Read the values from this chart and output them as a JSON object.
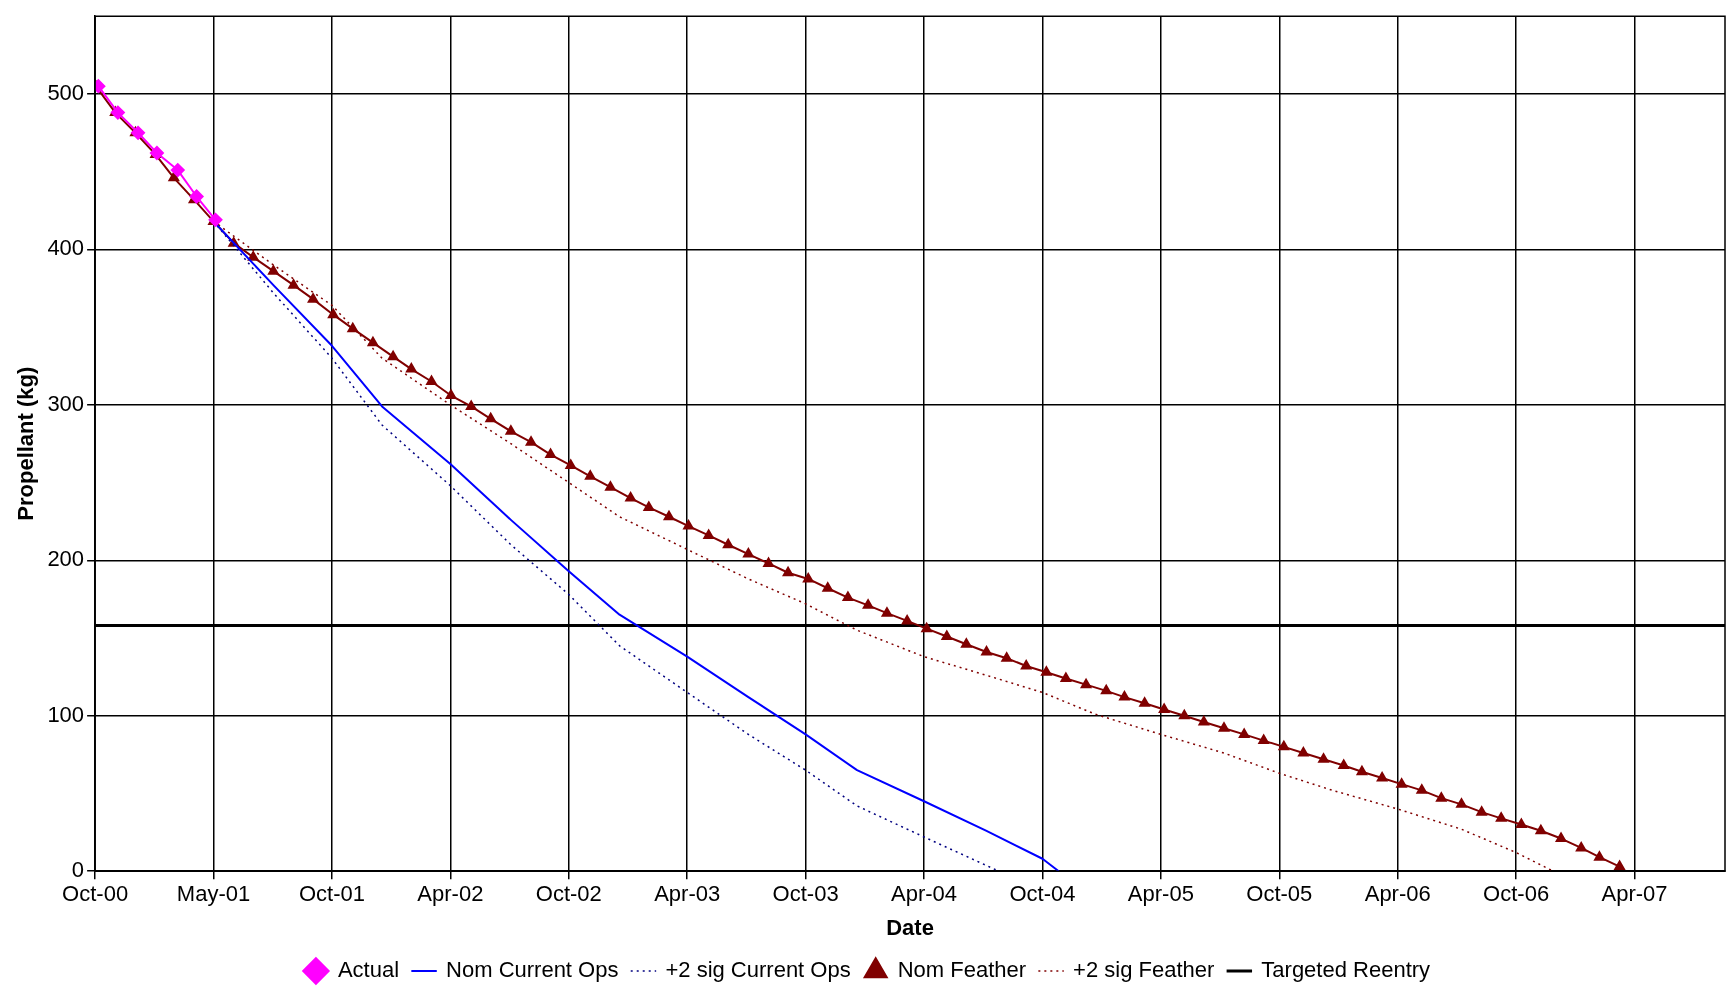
{
  "chart_data": {
    "type": "line",
    "xlabel": "Date",
    "ylabel": "Propellant (kg)",
    "xlim": [
      "2000-10-31",
      "2007-09-10"
    ],
    "xticks": [
      {
        "value": "2000-10-31",
        "label": "Oct-00"
      },
      {
        "value": "2001-05-01",
        "label": "May-01"
      },
      {
        "value": "2001-10-30",
        "label": "Oct-01"
      },
      {
        "value": "2002-04-30",
        "label": "Apr-02"
      },
      {
        "value": "2002-10-29",
        "label": "Oct-02"
      },
      {
        "value": "2003-04-29",
        "label": "Apr-03"
      },
      {
        "value": "2003-10-28",
        "label": "Oct-03"
      },
      {
        "value": "2004-04-27",
        "label": "Apr-04"
      },
      {
        "value": "2004-10-26",
        "label": "Oct-04"
      },
      {
        "value": "2005-04-26",
        "label": "Apr-05"
      },
      {
        "value": "2005-10-25",
        "label": "Oct-05"
      },
      {
        "value": "2006-04-25",
        "label": "Apr-06"
      },
      {
        "value": "2006-10-24",
        "label": "Oct-06"
      },
      {
        "value": "2007-04-24",
        "label": "Apr-07"
      }
    ],
    "ylim": [
      0,
      550
    ],
    "yticks": [
      0,
      100,
      200,
      300,
      400,
      500
    ],
    "grid": true,
    "legend": "bottom",
    "series": [
      {
        "name": "Actual",
        "color": "#ff00ff",
        "marker": "diamond",
        "line_style": "solid",
        "x": [
          "2000-11-05",
          "2000-12-05",
          "2001-01-05",
          "2001-02-03",
          "2001-03-07",
          "2001-04-05",
          "2001-05-04"
        ],
        "values": [
          505,
          488,
          475,
          462,
          451,
          434,
          419
        ]
      },
      {
        "name": "Nom Current Ops",
        "color": "#0000ff",
        "marker": "none",
        "line_style": "solid",
        "x": [
          "2001-05-01",
          "2001-08-01",
          "2001-10-30",
          "2002-01-15",
          "2002-04-30",
          "2002-08-01",
          "2002-10-29",
          "2003-01-15",
          "2003-04-29",
          "2003-08-01",
          "2003-10-28",
          "2004-01-15",
          "2004-04-27",
          "2004-08-01",
          "2004-10-26",
          "2004-11-20"
        ],
        "values": [
          418,
          377,
          338,
          299,
          262,
          226,
          193,
          165,
          138,
          112,
          88,
          65,
          45,
          26,
          8,
          0
        ]
      },
      {
        "name": "+2 sig Current Ops",
        "color": "#000080",
        "marker": "none",
        "line_style": "dotted",
        "x": [
          "2001-05-01",
          "2001-08-01",
          "2001-10-30",
          "2002-01-15",
          "2002-04-30",
          "2002-08-01",
          "2002-10-29",
          "2003-01-15",
          "2003-04-29",
          "2003-08-01",
          "2003-10-28",
          "2004-01-15",
          "2004-04-27",
          "2004-08-20"
        ],
        "values": [
          418,
          372,
          330,
          287,
          248,
          210,
          178,
          145,
          115,
          88,
          65,
          42,
          22,
          0
        ]
      },
      {
        "name": "Nom Feather",
        "color": "#800000",
        "marker": "triangle",
        "line_style": "solid",
        "x": [
          "2000-11",
          "2000-12",
          "2001-01",
          "2001-02",
          "2001-03",
          "2001-04",
          "2001-05",
          "2001-06",
          "2001-07",
          "2001-08",
          "2001-09",
          "2001-10",
          "2001-11",
          "2001-12",
          "2002-01",
          "2002-02",
          "2002-03",
          "2002-04",
          "2002-05",
          "2002-06",
          "2002-07",
          "2002-08",
          "2002-09",
          "2002-10",
          "2002-11",
          "2002-12",
          "2003-01",
          "2003-02",
          "2003-03",
          "2003-04",
          "2003-05",
          "2003-06",
          "2003-07",
          "2003-08",
          "2003-09",
          "2003-10",
          "2003-11",
          "2003-12",
          "2004-01",
          "2004-02",
          "2004-03",
          "2004-04",
          "2004-05",
          "2004-06",
          "2004-07",
          "2004-08",
          "2004-09",
          "2004-10",
          "2004-11",
          "2004-12",
          "2005-01",
          "2005-02",
          "2005-03",
          "2005-04",
          "2005-05",
          "2005-06",
          "2005-07",
          "2005-08",
          "2005-09",
          "2005-10",
          "2005-11",
          "2005-12",
          "2006-01",
          "2006-02",
          "2006-03",
          "2006-04",
          "2006-05",
          "2006-06",
          "2006-07",
          "2006-08",
          "2006-09",
          "2006-10",
          "2006-11",
          "2006-12",
          "2007-01",
          "2007-02",
          "2007-03",
          "2007-04"
        ],
        "values": [
          505,
          488,
          475,
          461,
          446,
          432,
          418,
          404,
          395,
          386,
          377,
          368,
          358,
          349,
          340,
          331,
          323,
          315,
          306,
          299,
          291,
          283,
          276,
          268,
          261,
          254,
          247,
          240,
          234,
          228,
          222,
          216,
          210,
          204,
          198,
          192,
          188,
          182,
          176,
          171,
          166,
          161,
          156,
          151,
          146,
          141,
          137,
          132,
          128,
          124,
          120,
          116,
          112,
          108,
          104,
          100,
          96,
          92,
          88,
          84,
          80,
          76,
          72,
          68,
          64,
          60,
          56,
          52,
          47,
          43,
          38,
          34,
          30,
          26,
          21,
          15,
          9,
          3
        ]
      },
      {
        "name": "+2 sig Feather",
        "color": "#800000",
        "marker": "none",
        "line_style": "dotted",
        "x": [
          "2001-05-01",
          "2001-08-01",
          "2001-10-30",
          "2002-01-15",
          "2002-04-30",
          "2002-08-01",
          "2002-10-29",
          "2003-01-15",
          "2003-04-29",
          "2003-08-01",
          "2003-10-28",
          "2004-01-15",
          "2004-04-27",
          "2004-08-01",
          "2004-10-26",
          "2005-01-15",
          "2005-04-26",
          "2005-08-01",
          "2005-10-25",
          "2006-01-15",
          "2006-04-25",
          "2006-08-01",
          "2006-10-24",
          "2006-12-20"
        ],
        "values": [
          418,
          390,
          364,
          330,
          300,
          275,
          250,
          228,
          207,
          188,
          172,
          155,
          138,
          126,
          115,
          101,
          88,
          76,
          63,
          52,
          40,
          27,
          12,
          0
        ]
      },
      {
        "name": "Targeted Reentry",
        "color": "#000000",
        "marker": "none",
        "line_style": "solid",
        "x": [
          "2000-10-31",
          "2007-09-10"
        ],
        "values": [
          158,
          158
        ]
      }
    ]
  }
}
